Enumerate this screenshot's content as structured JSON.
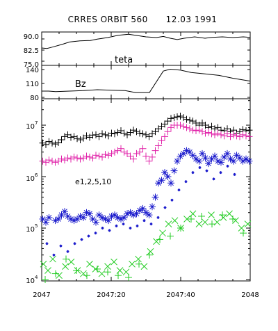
{
  "chart_data": [
    {
      "type": "line",
      "title": "CRRES ORBIT 560      12.03 1991",
      "label": "teta",
      "ylim": [
        75.0,
        90.0
      ],
      "yticks": [
        "90.0",
        "82.5",
        "75.0"
      ],
      "x": [
        "2047:00",
        "2047:01.5",
        "2047:03",
        "2047:06",
        "2047:08",
        "2047:11",
        "2047:14",
        "2047:16",
        "2047:19",
        "2047:22",
        "2047:25",
        "2047:27",
        "2047:30",
        "2047:33",
        "2047:35",
        "2047:37",
        "2047:39",
        "2047:41",
        "2047:44",
        "2047:47",
        "2047:49",
        "2047:52",
        "2047:55",
        "2047:58",
        "2048:00"
      ],
      "values": [
        82.8,
        82.6,
        83.2,
        84.5,
        85.5,
        86.0,
        86.2,
        86.8,
        87.5,
        88.5,
        89.0,
        88.5,
        87.8,
        87.5,
        88.0,
        87.2,
        86.6,
        87.2,
        87.8,
        87.2,
        87.6,
        87.8,
        87.5,
        87.8,
        87.6
      ]
    },
    {
      "type": "line",
      "label": "Bz",
      "ylim": [
        75,
        145
      ],
      "yticks": [
        "140",
        "110",
        "80"
      ],
      "x": [
        "2047:00",
        "2047:02",
        "2047:04",
        "2047:08",
        "2047:12",
        "2047:16",
        "2047:20",
        "2047:24",
        "2047:27",
        "2047:29",
        "2047:31",
        "2047:35",
        "2047:37",
        "2047:40",
        "2047:43",
        "2047:47",
        "2047:51",
        "2047:55",
        "2048:00"
      ],
      "values": [
        91,
        91,
        90,
        91,
        92,
        94,
        93,
        92,
        88,
        88,
        88,
        133,
        137,
        135,
        130,
        127,
        124,
        118,
        112
      ]
    },
    {
      "type": "scatter",
      "label": "e1,2,5,10",
      "xlabel_ticks": [
        "2047",
        "2047:20",
        "2047:40",
        "2048"
      ],
      "ylim": [
        10000,
        20000000
      ],
      "ylog": true,
      "yticks": [
        "10^4",
        "10^5",
        "10^6",
        "10^7"
      ],
      "colors": {
        "e1": "#000000",
        "e2": "#e020a8",
        "e5": "#1a1acc",
        "e10": "#22cc22"
      },
      "series": [
        {
          "name": "e1",
          "marker": "plus",
          "x": [
            0.3,
            1.2,
            2.1,
            3.0,
            3.9,
            4.8,
            5.7,
            6.6,
            7.5,
            8.4,
            9.3,
            10.2,
            11.1,
            12.0,
            12.9,
            13.8,
            14.7,
            15.6,
            16.5,
            17.4,
            18.3,
            19.2,
            20.1,
            21.0,
            21.9,
            22.8,
            23.7,
            24.6,
            25.5,
            26.4,
            27.3,
            28.2,
            29.1,
            30.0,
            30.9,
            31.8,
            32.7,
            33.6,
            34.5,
            35.4,
            36.3,
            37.2,
            38.1,
            39.0,
            39.9,
            40.8,
            41.7,
            42.6,
            43.5,
            44.4,
            45.3,
            46.2,
            47.1,
            48.0,
            48.9,
            49.8,
            50.7,
            51.6,
            52.5,
            53.4,
            54.3,
            55.2,
            56.1,
            57.0,
            57.9,
            58.8,
            59.7
          ],
          "y": [
            4500000.0,
            4200000.0,
            4800000.0,
            4500000.0,
            4300000.0,
            4600000.0,
            5200000.0,
            6000000.0,
            6500000.0,
            5800000.0,
            6000000.0,
            5500000.0,
            5200000.0,
            5600000.0,
            6200000.0,
            5800000.0,
            6400000.0,
            6500000.0,
            6000000.0,
            6800000.0,
            6500000.0,
            6200000.0,
            7000000.0,
            6800000.0,
            7200000.0,
            7800000.0,
            7000000.0,
            6500000.0,
            7200000.0,
            8000000.0,
            7500000.0,
            7000000.0,
            6800000.0,
            6500000.0,
            6000000.0,
            6800000.0,
            7500000.0,
            8500000.0,
            9500000.0,
            10500000.0,
            12000000.0,
            13500000.0,
            14000000.0,
            14500000.0,
            15000000.0,
            14000000.0,
            13000000.0,
            12500000.0,
            12000000.0,
            11000000.0,
            10000000.0,
            11000000.0,
            10000000.0,
            9000000.0,
            9500000.0,
            8500000.0,
            9000000.0,
            8000000.0,
            7800000.0,
            8500000.0,
            7500000.0,
            8000000.0,
            7000000.0,
            7500000.0,
            8200000.0,
            7800000.0,
            8000000.0
          ]
        },
        {
          "name": "e2",
          "marker": "plus",
          "x": [
            0.3,
            1.2,
            2.1,
            3.0,
            3.9,
            4.8,
            5.7,
            6.6,
            7.5,
            8.4,
            9.3,
            10.2,
            11.1,
            12.0,
            12.9,
            13.8,
            14.7,
            15.6,
            16.5,
            17.4,
            18.3,
            19.2,
            20.1,
            21.0,
            21.9,
            22.8,
            23.7,
            24.6,
            25.5,
            26.4,
            27.3,
            28.2,
            29.1,
            30.0,
            30.9,
            31.8,
            32.7,
            33.6,
            34.5,
            35.4,
            36.3,
            37.2,
            38.1,
            39.0,
            39.9,
            40.8,
            41.7,
            42.6,
            43.5,
            44.4,
            45.3,
            46.2,
            47.1,
            48.0,
            48.9,
            49.8,
            50.7,
            51.6,
            52.5,
            53.4,
            54.3,
            55.2,
            56.1,
            57.0,
            57.9,
            58.8,
            59.7
          ],
          "y": [
            2000000.0,
            1900000.0,
            2100000.0,
            2000000.0,
            1900000.0,
            2000000.0,
            2200000.0,
            2100000.0,
            2300000.0,
            2200000.0,
            2400000.0,
            2300000.0,
            2200000.0,
            2300000.0,
            2500000.0,
            2400000.0,
            2300000.0,
            2600000.0,
            2500000.0,
            2400000.0,
            2700000.0,
            2600000.0,
            2800000.0,
            3000000.0,
            3200000.0,
            3500000.0,
            3000000.0,
            2800000.0,
            2500000.0,
            2200000.0,
            2800000.0,
            3000000.0,
            3500000.0,
            2500000.0,
            2000000.0,
            2400000.0,
            3200000.0,
            4000000.0,
            5000000.0,
            6000000.0,
            7500000.0,
            9000000.0,
            10000000.0,
            10000000.0,
            10000000.0,
            9500000.0,
            9000000.0,
            8500000.0,
            8000000.0,
            7800000.0,
            8000000.0,
            7500000.0,
            7000000.0,
            7200000.0,
            6800000.0,
            6500000.0,
            7000000.0,
            6500000.0,
            6200000.0,
            6800000.0,
            6000000.0,
            6500000.0,
            6200000.0,
            6000000.0,
            6500000.0,
            6200000.0,
            6000000.0
          ]
        },
        {
          "name": "e5",
          "marker": "star",
          "x": [
            0.3,
            1.2,
            2.1,
            3.9,
            4.8,
            5.7,
            6.6,
            7.5,
            8.4,
            9.3,
            10.2,
            11.1,
            12.0,
            12.9,
            13.8,
            14.7,
            15.6,
            16.5,
            17.4,
            18.3,
            19.2,
            20.1,
            21.0,
            21.9,
            22.8,
            23.7,
            24.6,
            25.5,
            26.4,
            27.3,
            28.2,
            29.1,
            30.0,
            30.9,
            31.8,
            32.7,
            33.6,
            34.5,
            35.4,
            36.3,
            37.2,
            38.1,
            39.0,
            39.9,
            40.8,
            41.7,
            42.6,
            43.5,
            44.4,
            45.3,
            46.2,
            47.1,
            48.0,
            48.9,
            49.8,
            50.7,
            51.6,
            52.5,
            53.4,
            54.3,
            55.2,
            56.1,
            57.0,
            57.9,
            58.8,
            59.7
          ],
          "y": [
            150000.0,
            130000.0,
            160000.0,
            140000.0,
            150000.0,
            180000.0,
            210000.0,
            170000.0,
            150000.0,
            140000.0,
            150000.0,
            170000.0,
            160000.0,
            200000.0,
            190000.0,
            150000.0,
            130000.0,
            180000.0,
            160000.0,
            150000.0,
            140000.0,
            170000.0,
            180000.0,
            160000.0,
            150000.0,
            160000.0,
            190000.0,
            200000.0,
            180000.0,
            190000.0,
            220000.0,
            240000.0,
            200000.0,
            180000.0,
            260000.0,
            400000.0,
            750000.0,
            850000.0,
            1200000.0,
            1000000.0,
            750000.0,
            1300000.0,
            2000000.0,
            2500000.0,
            2800000.0,
            3200000.0,
            3000000.0,
            2600000.0,
            2200000.0,
            2000000.0,
            2800000.0,
            2300000.0,
            1800000.0,
            2200000.0,
            2500000.0,
            2000000.0,
            1900000.0,
            2400000.0,
            2800000.0,
            2200000.0,
            2000000.0,
            2600000.0,
            2300000.0,
            2000000.0,
            2200000.0,
            2000000.0
          ]
        },
        {
          "name": "e5-small",
          "marker": "star-small",
          "x": [
            1.5,
            3.5,
            5.5,
            7.5,
            9.5,
            11.5,
            13.5,
            15.5,
            17.5,
            19.5,
            21.5,
            23.5,
            25.5,
            27.5,
            29.5,
            31.5,
            33.5,
            35.5,
            37.5,
            39.5,
            41.5,
            43.5,
            45.5,
            47.5,
            49.5,
            51.5,
            53.5,
            55.5
          ],
          "y": [
            50000.0,
            30000.0,
            45000.0,
            35000.0,
            50000.0,
            60000.0,
            70000.0,
            80000.0,
            100000.0,
            90000.0,
            110000.0,
            120000.0,
            100000.0,
            110000.0,
            140000.0,
            120000.0,
            160000.0,
            250000.0,
            350000.0,
            550000.0,
            800000.0,
            1200000.0,
            1500000.0,
            1300000.0,
            900000.0,
            1200000.0,
            1600000.0,
            1100000.0
          ]
        },
        {
          "name": "e10",
          "marker": "cross",
          "x": [
            0.5,
            1.8,
            3.2,
            5.0,
            6.8,
            8.5,
            10.3,
            12.0,
            13.8,
            15.5,
            17.3,
            19.0,
            20.8,
            22.5,
            24.3,
            26.0,
            27.8,
            29.5,
            31.3,
            33.0,
            34.8,
            36.5,
            38.3,
            40.0,
            41.8,
            43.5,
            45.3,
            47.0,
            48.8,
            50.5,
            52.3,
            54.0,
            55.8,
            57.5,
            59.3
          ],
          "y": [
            20000.0,
            15000.0,
            25000.0,
            12000.0,
            18000.0,
            22000.0,
            15000.0,
            13000.0,
            20000.0,
            16000.0,
            13000.0,
            18000.0,
            22000.0,
            15000.0,
            14000.0,
            20000.0,
            25000.0,
            18000.0,
            35000.0,
            55000.0,
            80000.0,
            120000.0,
            140000.0,
            100000.0,
            150000.0,
            190000.0,
            120000.0,
            130000.0,
            180000.0,
            130000.0,
            160000.0,
            190000.0,
            140000.0,
            100000.0,
            120000.0
          ]
        },
        {
          "name": "e10-plus",
          "marker": "plus",
          "x": [
            1.0,
            4.0,
            7.0,
            10.0,
            13.0,
            16.0,
            19.0,
            22.0,
            25.0,
            28.0,
            31.0,
            34.0,
            37.0,
            40.0,
            43.0,
            46.0,
            49.0,
            52.0,
            55.0,
            58.0
          ],
          "y": [
            10000.0,
            13000.0,
            25000.0,
            15000.0,
            12000.0,
            16000.0,
            14000.0,
            12000.0,
            11000.0,
            20000.0,
            30000.0,
            60000.0,
            70000.0,
            100000.0,
            150000.0,
            170000.0,
            120000.0,
            180000.0,
            150000.0,
            80000.0
          ]
        }
      ]
    }
  ]
}
